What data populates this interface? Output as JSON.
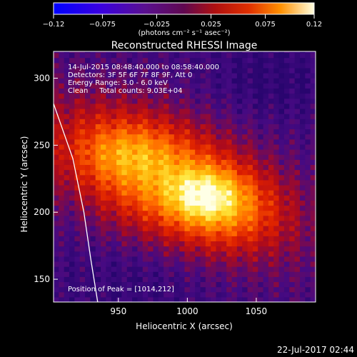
{
  "chart_data": {
    "type": "heatmap",
    "title": "Reconstructed RHESSI Image",
    "xlabel": "Heliocentric X (arcsec)",
    "ylabel": "Heliocentric Y (arcsec)",
    "xlim": [
      903,
      1093
    ],
    "ylim": [
      133,
      320
    ],
    "x_ticks": [
      950,
      1000,
      1050
    ],
    "y_ticks": [
      150,
      200,
      250,
      300
    ],
    "colorbar": {
      "min": -0.12,
      "max": 0.12,
      "tick_values": [
        -0.12,
        -0.075,
        -0.025,
        0.025,
        0.075,
        0.12
      ],
      "tick_labels": [
        "−0.12",
        "−0.075",
        "−0.025",
        "0.025",
        "0.075",
        "0.12"
      ],
      "unit_label": "(photons cm⁻² s⁻¹ asec⁻²)"
    },
    "annotations": {
      "time_range": "14-Jul-2015 08:48:40.000 to 08:58:40.000",
      "detectors": "Detectors: 3F 5F 6F 7F 8F 9F, Att 0",
      "energy": "Energy Range: 3.0 - 6.0 keV",
      "clean_total": "Clean     Total counts: 9.03E+04",
      "peak": "Position of Peak = [1014,212]"
    },
    "peak": [
      1014,
      212
    ],
    "limb_arc": [
      [
        903,
        281
      ],
      [
        917,
        240
      ],
      [
        925,
        200
      ],
      [
        930,
        165
      ],
      [
        935,
        133
      ]
    ]
  },
  "footer": {
    "timestamp": "22-Jul-2017 02:44"
  }
}
